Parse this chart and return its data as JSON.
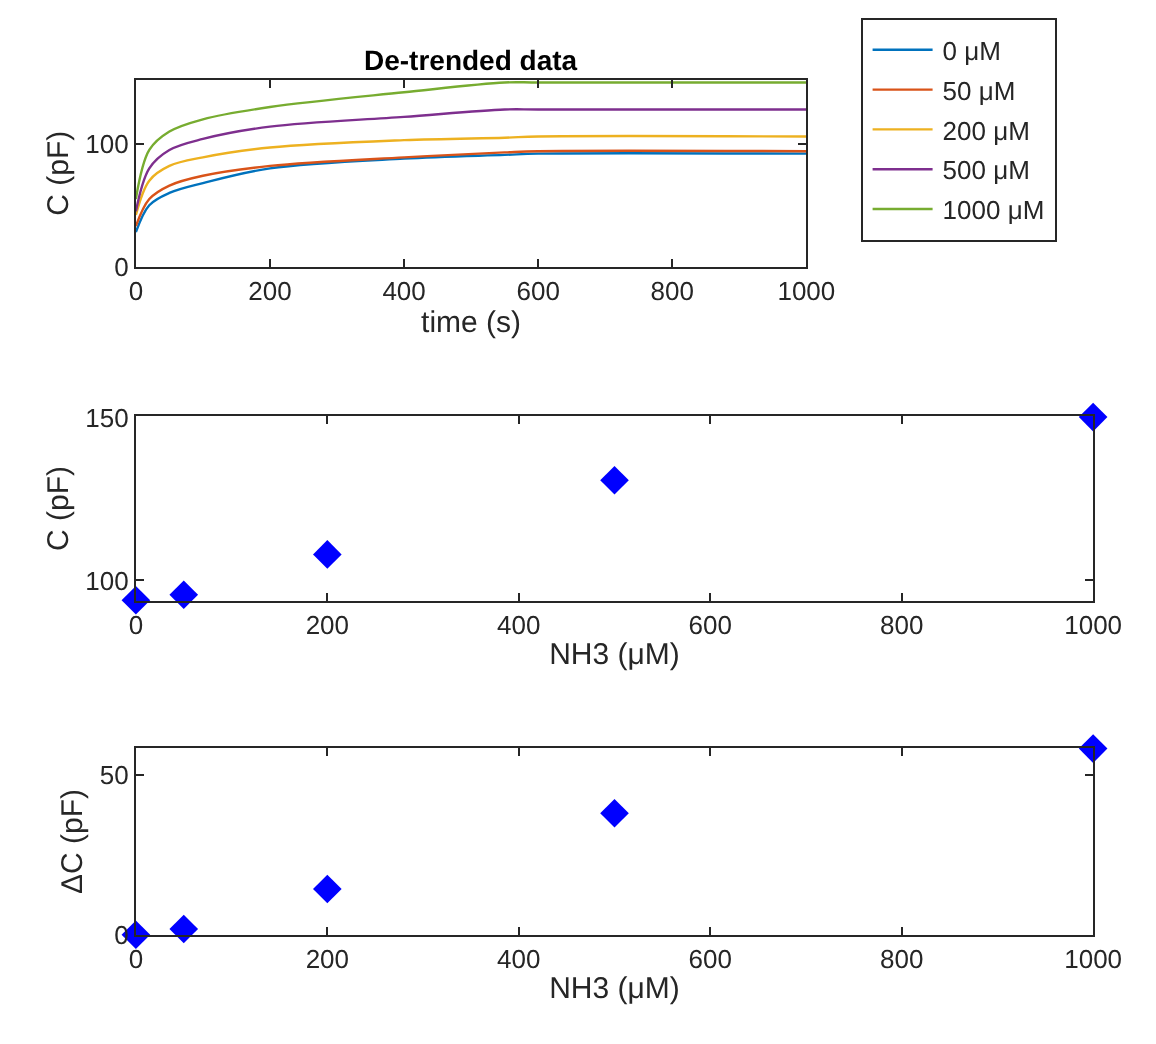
{
  "chart_data": [
    {
      "type": "line",
      "title": "De-trended data",
      "xlabel": "time (s)",
      "ylabel": "C (pF)",
      "xlim": [
        0,
        1000
      ],
      "ylim": [
        0,
        152
      ],
      "xticks": [
        0,
        200,
        400,
        600,
        800,
        1000
      ],
      "yticks": [
        0,
        100
      ],
      "legend": "right",
      "marker": "none",
      "line_style": "solid",
      "x": [
        0,
        20,
        50,
        100,
        200,
        400,
        550,
        600,
        1000
      ],
      "series": [
        {
          "name": "0 μM",
          "color": "#0072bd",
          "values": [
            28,
            50,
            60,
            68,
            80,
            88,
            91,
            92,
            92
          ]
        },
        {
          "name": "50 μM",
          "color": "#d95319",
          "values": [
            33,
            55,
            66,
            74,
            82,
            89,
            93,
            94,
            94
          ]
        },
        {
          "name": "200 μM",
          "color": "#edb120",
          "values": [
            42,
            70,
            82,
            89,
            97,
            103,
            105,
            106,
            106
          ]
        },
        {
          "name": "500 μM",
          "color": "#7e2f8e",
          "values": [
            45,
            80,
            95,
            104,
            114,
            122,
            128,
            128,
            128
          ]
        },
        {
          "name": "1000 μM",
          "color": "#77ac30",
          "values": [
            55,
            95,
            110,
            120,
            130,
            142,
            150,
            150,
            150
          ]
        }
      ]
    },
    {
      "type": "scatter",
      "xlabel": "NH3 (μM)",
      "ylabel": "C (pF)",
      "xlim": [
        0,
        1000
      ],
      "ylim": [
        93.8,
        150.5
      ],
      "xticks": [
        0,
        200,
        400,
        600,
        800,
        1000
      ],
      "yticks": [
        100,
        150
      ],
      "marker": "diamond",
      "x": [
        0,
        50,
        200,
        500,
        1000
      ],
      "series": [
        {
          "color": "#0000ff",
          "values": [
            93.9,
            95.6,
            108,
            130.8,
            150.2
          ]
        }
      ]
    },
    {
      "type": "scatter",
      "xlabel": "NH3 (μM)",
      "ylabel": "ΔC (pF)",
      "xlim": [
        0,
        1000
      ],
      "ylim": [
        0,
        58.2
      ],
      "xticks": [
        0,
        200,
        400,
        600,
        800,
        1000
      ],
      "yticks": [
        0,
        50
      ],
      "marker": "diamond",
      "x": [
        0,
        50,
        200,
        500,
        1000
      ],
      "series": [
        {
          "color": "#0000ff",
          "values": [
            0,
            1.8,
            14.3,
            37.9,
            58.1
          ]
        }
      ]
    }
  ]
}
